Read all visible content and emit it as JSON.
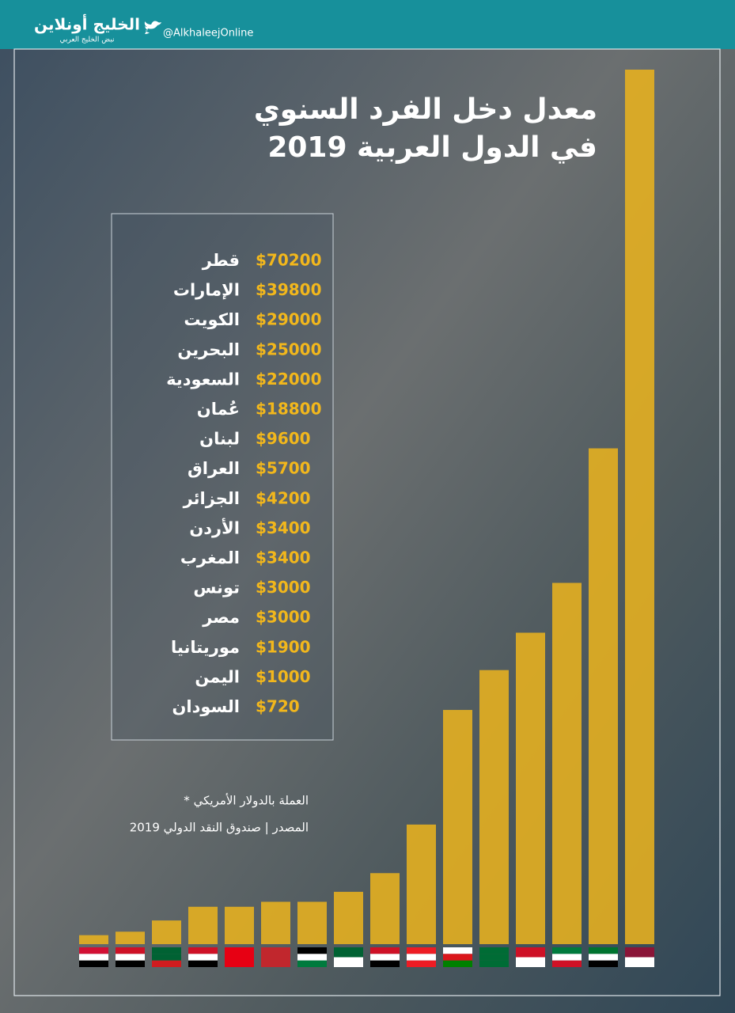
{
  "header": {
    "logo": "الخليج أونلاين",
    "tagline": "نبض الخليج العربي",
    "handle": "@AlkhaleejOnline"
  },
  "chart_data": {
    "type": "bar",
    "title_lines": [
      "معدل دخل الفرد السنوي",
      "في الدول العربية 2019"
    ],
    "categories": [
      "قطر",
      "الإمارات",
      "الكويت",
      "البحرين",
      "السعودية",
      "عُمان",
      "لبنان",
      "العراق",
      "الجزائر",
      "الأردن",
      "المغرب",
      "تونس",
      "مصر",
      "موريتانيا",
      "اليمن",
      "السودان"
    ],
    "values": [
      70200,
      39800,
      29000,
      25000,
      22000,
      18800,
      9600,
      5700,
      4200,
      3400,
      3400,
      3000,
      3000,
      1900,
      1000,
      720
    ],
    "value_labels": [
      "$70200",
      "$39800",
      "$29000",
      "$25000",
      "$22000",
      "$18800",
      "$9600",
      "$5700",
      "$4200",
      "$3400",
      "$3400",
      "$3000",
      "$3000",
      "$1900",
      "$1000",
      "$720"
    ],
    "color": "#e8b21f"
  },
  "notes": [
    "* العملة بالدولار الأمريكي",
    "المصدر  |  صندوق النقد الدولي 2019"
  ]
}
